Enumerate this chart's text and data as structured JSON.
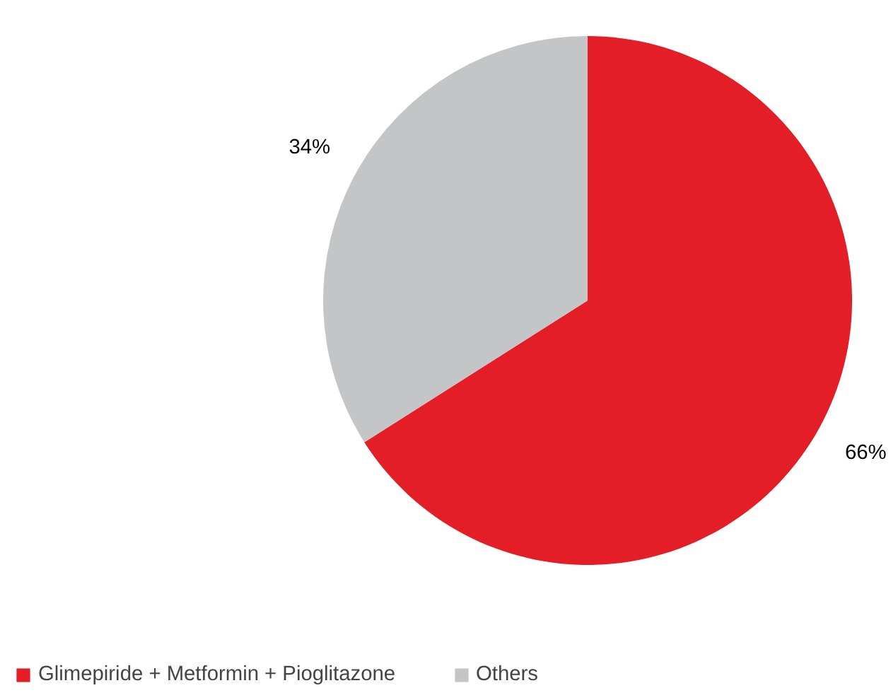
{
  "chart_data": {
    "type": "pie",
    "categories": [
      "Glimepiride + Metformin + Pioglitazone",
      "Others"
    ],
    "values": [
      66,
      34
    ],
    "colors": [
      "#e31e26",
      "#c4c5c7"
    ],
    "value_labels": [
      "66%",
      "34%"
    ],
    "legend": "bottom"
  }
}
